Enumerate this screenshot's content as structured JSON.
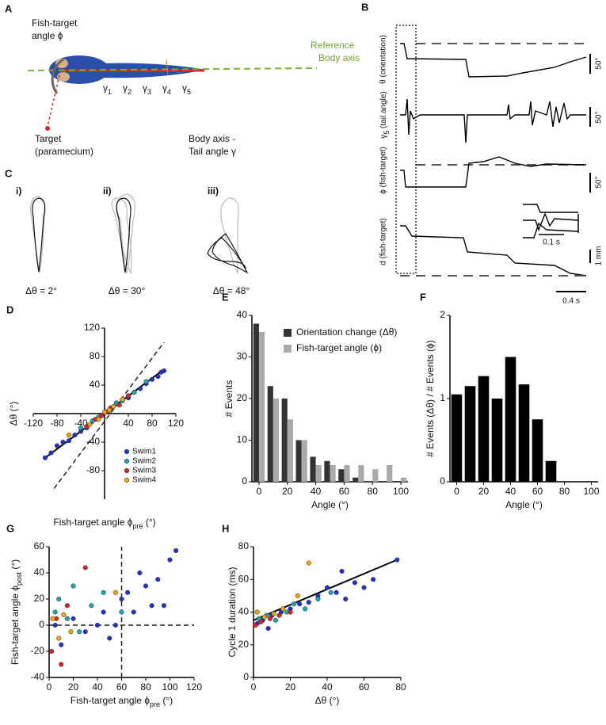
{
  "panels": {
    "A": {
      "letter": "A",
      "angle_label": [
        "Fish-target",
        "angle ϕ"
      ],
      "reference": [
        "Reference",
        "Body axis"
      ],
      "gamma": "γ",
      "segments": [
        "1",
        "2",
        "3",
        "4",
        "5"
      ],
      "target": [
        "Target",
        "(paramecium)"
      ],
      "tail": [
        "Body axis -",
        "Tail angle γ"
      ]
    },
    "B": {
      "letter": "B",
      "theta": "θ (orientation)",
      "gamma": "γ",
      "gamma_sub": "5",
      "gamma_rest": " (tail angle)",
      "phi": "ϕ (fish-target)",
      "dist": "d (fish-target)",
      "scale_deg": [
        "50°",
        "50°",
        "50°"
      ],
      "scale_mm": "1 mm",
      "scale_inset": "0.1 s",
      "scale_time": "0.4 s"
    },
    "C": {
      "letter": "C",
      "items": [
        {
          "tag": "i)",
          "label": "Δθ = 2°"
        },
        {
          "tag": "ii)",
          "label": "Δθ = 30°"
        },
        {
          "tag": "iii)",
          "label": "Δθ = 48°"
        }
      ]
    }
  },
  "chart_data": [
    {
      "panel": "D",
      "type": "scatter",
      "axes_cross_zero": true,
      "xlabel": {
        "text": "Fish-target angle ϕ",
        "sub": "pre",
        "rest": " (°)"
      },
      "ylabel": "Δθ (°)",
      "xlim": [
        -120,
        120
      ],
      "ylim": [
        -120,
        120
      ],
      "xticks": [
        -120,
        -80,
        -40,
        40,
        80,
        120
      ],
      "yticks": [
        -80,
        -40,
        40,
        80,
        120
      ],
      "legend": "bottom-right",
      "series": [
        {
          "name": "Swim1",
          "color": "#2233cc",
          "x": [
            -100,
            -90,
            -80,
            -70,
            -60,
            -50,
            -40,
            -30,
            20,
            30,
            40,
            50,
            60,
            70,
            80,
            90,
            95,
            100
          ],
          "values": [
            -62,
            -55,
            -45,
            -40,
            -38,
            -30,
            -25,
            -20,
            15,
            20,
            22,
            30,
            35,
            42,
            48,
            52,
            58,
            60
          ]
        },
        {
          "name": "Swim2",
          "color": "#1aaaaa",
          "x": [
            -40,
            -20,
            -10,
            10,
            20,
            30,
            50,
            70
          ],
          "values": [
            -20,
            -10,
            -5,
            5,
            15,
            18,
            30,
            45
          ]
        },
        {
          "name": "Swim3",
          "color": "#dd2222",
          "x": [
            -30,
            -15,
            -5,
            5,
            10,
            25,
            40
          ],
          "values": [
            -18,
            -8,
            -3,
            3,
            8,
            12,
            25
          ]
        },
        {
          "name": "Swim4",
          "color": "#f0a800",
          "x": [
            -60,
            -25,
            -10,
            0,
            8,
            15,
            30
          ],
          "values": [
            -30,
            -15,
            -8,
            2,
            5,
            10,
            20
          ]
        }
      ],
      "lines": [
        {
          "x": [
            -100,
            100
          ],
          "y": [
            -62,
            62
          ],
          "dash": false
        },
        {
          "x": [
            -85,
            100
          ],
          "y": [
            -105,
            100
          ],
          "dash": true
        }
      ]
    },
    {
      "panel": "E",
      "type": "bar",
      "xlabel": "Angle (°)",
      "ylabel": "# Events",
      "xlim": [
        -5,
        105
      ],
      "ylim": [
        0,
        40
      ],
      "xticks": [
        0,
        20,
        40,
        60,
        80,
        100
      ],
      "yticks": [
        0,
        10,
        20,
        30,
        40
      ],
      "legend": "top-right",
      "x": [
        0,
        10,
        20,
        30,
        40,
        50,
        60,
        70,
        80,
        90,
        100
      ],
      "series": [
        {
          "name": "Orientation change (Δθ)",
          "color": "#333333",
          "values": [
            38,
            23,
            20,
            10,
            6,
            5,
            3,
            1,
            0,
            0,
            0
          ]
        },
        {
          "name": "Fish-target angle (ϕ)",
          "color": "#aaaaaa",
          "values": [
            36,
            20,
            15,
            10,
            4,
            4,
            4,
            4,
            3,
            4,
            1
          ]
        }
      ]
    },
    {
      "panel": "F",
      "type": "bar",
      "xlabel": "Angle (°)",
      "ylabel": "# Events (Δθ) / # Events (ϕ)",
      "xlim": [
        -5,
        105
      ],
      "ylim": [
        0,
        2
      ],
      "xticks": [
        0,
        20,
        40,
        60,
        80,
        100
      ],
      "yticks": [
        0,
        1,
        2
      ],
      "x": [
        0,
        10,
        20,
        30,
        40,
        50,
        60,
        70
      ],
      "series": [
        {
          "color": "#000000",
          "values": [
            1.05,
            1.15,
            1.27,
            1.0,
            1.5,
            1.17,
            0.75,
            0.25
          ]
        }
      ]
    },
    {
      "panel": "G",
      "type": "scatter",
      "xlabel": {
        "text": "Fish-target angle ϕ",
        "sub": "pre",
        "rest": " (°)"
      },
      "ylabel": {
        "text": "Fish-target angle ϕ",
        "sub": "post",
        "rest": " (°)"
      },
      "xlim": [
        0,
        120
      ],
      "ylim": [
        -40,
        60
      ],
      "xticks": [
        0,
        20,
        40,
        60,
        80,
        100,
        120
      ],
      "yticks": [
        -40,
        -20,
        0,
        20,
        40,
        60
      ],
      "series": [
        {
          "color": "#2233cc",
          "x": [
            5,
            10,
            20,
            30,
            40,
            45,
            50,
            55,
            60,
            65,
            70,
            75,
            80,
            85,
            90,
            95,
            100,
            105
          ],
          "values": [
            0,
            -15,
            5,
            -5,
            0,
            10,
            -10,
            0,
            20,
            25,
            10,
            40,
            30,
            15,
            35,
            15,
            50,
            57
          ]
        },
        {
          "color": "#1aaaaa",
          "x": [
            5,
            8,
            15,
            20,
            25,
            35,
            45,
            60
          ],
          "values": [
            10,
            20,
            5,
            30,
            -5,
            15,
            25,
            10
          ]
        },
        {
          "color": "#dd2222",
          "x": [
            2,
            6,
            10,
            15,
            30
          ],
          "values": [
            -20,
            5,
            -30,
            15,
            44
          ]
        },
        {
          "color": "#f0a800",
          "x": [
            3,
            8,
            12,
            18,
            55
          ],
          "values": [
            5,
            -10,
            8,
            -5,
            25
          ]
        }
      ],
      "lines": [
        {
          "x": [
            60,
            60
          ],
          "y": [
            -40,
            60
          ],
          "dash": true
        },
        {
          "x": [
            0,
            120
          ],
          "y": [
            0,
            0
          ],
          "dash": true
        }
      ]
    },
    {
      "panel": "H",
      "type": "scatter",
      "xlabel": "Δθ (°)",
      "ylabel": "Cycle 1 duration (ms)",
      "xlim": [
        0,
        80
      ],
      "ylim": [
        0,
        80
      ],
      "xticks": [
        0,
        20,
        40,
        60,
        80
      ],
      "yticks": [
        0,
        20,
        40,
        60,
        80
      ],
      "series": [
        {
          "color": "#2233cc",
          "x": [
            2,
            5,
            8,
            10,
            15,
            20,
            25,
            30,
            35,
            40,
            45,
            48,
            50,
            55,
            60,
            65,
            78
          ],
          "values": [
            33,
            35,
            30,
            38,
            40,
            42,
            45,
            46,
            50,
            55,
            52,
            65,
            48,
            58,
            55,
            60,
            72
          ]
        },
        {
          "color": "#1aaaaa",
          "x": [
            3,
            7,
            12,
            18,
            22,
            28,
            35,
            42
          ],
          "values": [
            36,
            38,
            35,
            40,
            45,
            42,
            48,
            52
          ]
        },
        {
          "color": "#dd2222",
          "x": [
            1,
            4,
            9,
            14,
            20
          ],
          "values": [
            32,
            34,
            36,
            38,
            40
          ]
        },
        {
          "color": "#f0a800",
          "x": [
            2,
            6,
            11,
            16,
            24,
            30
          ],
          "values": [
            40,
            37,
            39,
            42,
            50,
            70
          ]
        }
      ],
      "lines": [
        {
          "x": [
            0,
            78
          ],
          "y": [
            35,
            72
          ],
          "dash": false
        }
      ]
    }
  ]
}
